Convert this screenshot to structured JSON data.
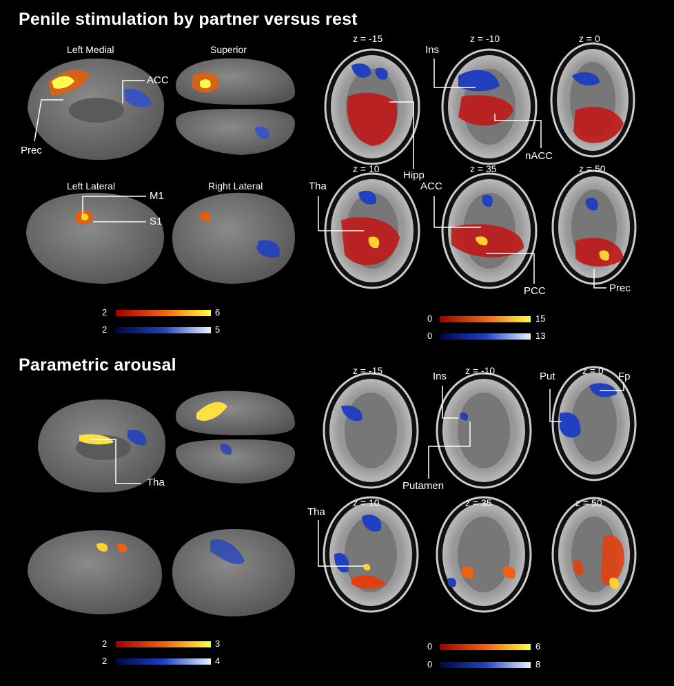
{
  "panel_top": {
    "title": "Penile stimulation by partner versus rest",
    "surface_labels": {
      "left_medial": "Left Medial",
      "superior": "Superior",
      "left_lateral": "Left Lateral",
      "right_lateral": "Right Lateral"
    },
    "annotations": {
      "acc": "ACC",
      "prec": "Prec",
      "m1": "M1",
      "s1": "S1"
    },
    "slices": [
      "z = -15",
      "z = -10",
      "z = 0",
      "z = 10",
      "z = 35",
      "z = 50"
    ],
    "slice_annotations": {
      "ins": "Ins",
      "hipp": "Hipp",
      "nacc": "nACC",
      "tha": "Tha",
      "acc": "ACC",
      "pcc": "PCC",
      "prec": "Prec"
    },
    "surface_colorbars": {
      "warm_min": "2",
      "warm_max": "6",
      "cool_min": "2",
      "cool_max": "5"
    },
    "slice_colorbars": {
      "warm_min": "0",
      "warm_max": "15",
      "cool_min": "0",
      "cool_max": "13"
    }
  },
  "panel_bottom": {
    "title": "Parametric arousal",
    "annotations": {
      "tha": "Tha"
    },
    "slices": [
      "z = -15",
      "z = -10",
      "z = 0",
      "z = 10",
      "z = 35",
      "z = 50"
    ],
    "slice_annotations": {
      "ins": "Ins",
      "putamen": "Putamen",
      "put": "Put",
      "fp": "Fp",
      "tha": "Tha"
    },
    "surface_colorbars": {
      "warm_min": "2",
      "warm_max": "3",
      "cool_min": "2",
      "cool_max": "4"
    },
    "slice_colorbars": {
      "warm_min": "0",
      "warm_max": "6",
      "cool_min": "0",
      "cool_max": "8"
    }
  },
  "colors": {
    "warm_low": "#b01010",
    "warm_high": "#ffff40",
    "cool_low": "#102080",
    "cool_high": "#e0f0ff",
    "brain_surface": "#6e6e6e"
  }
}
